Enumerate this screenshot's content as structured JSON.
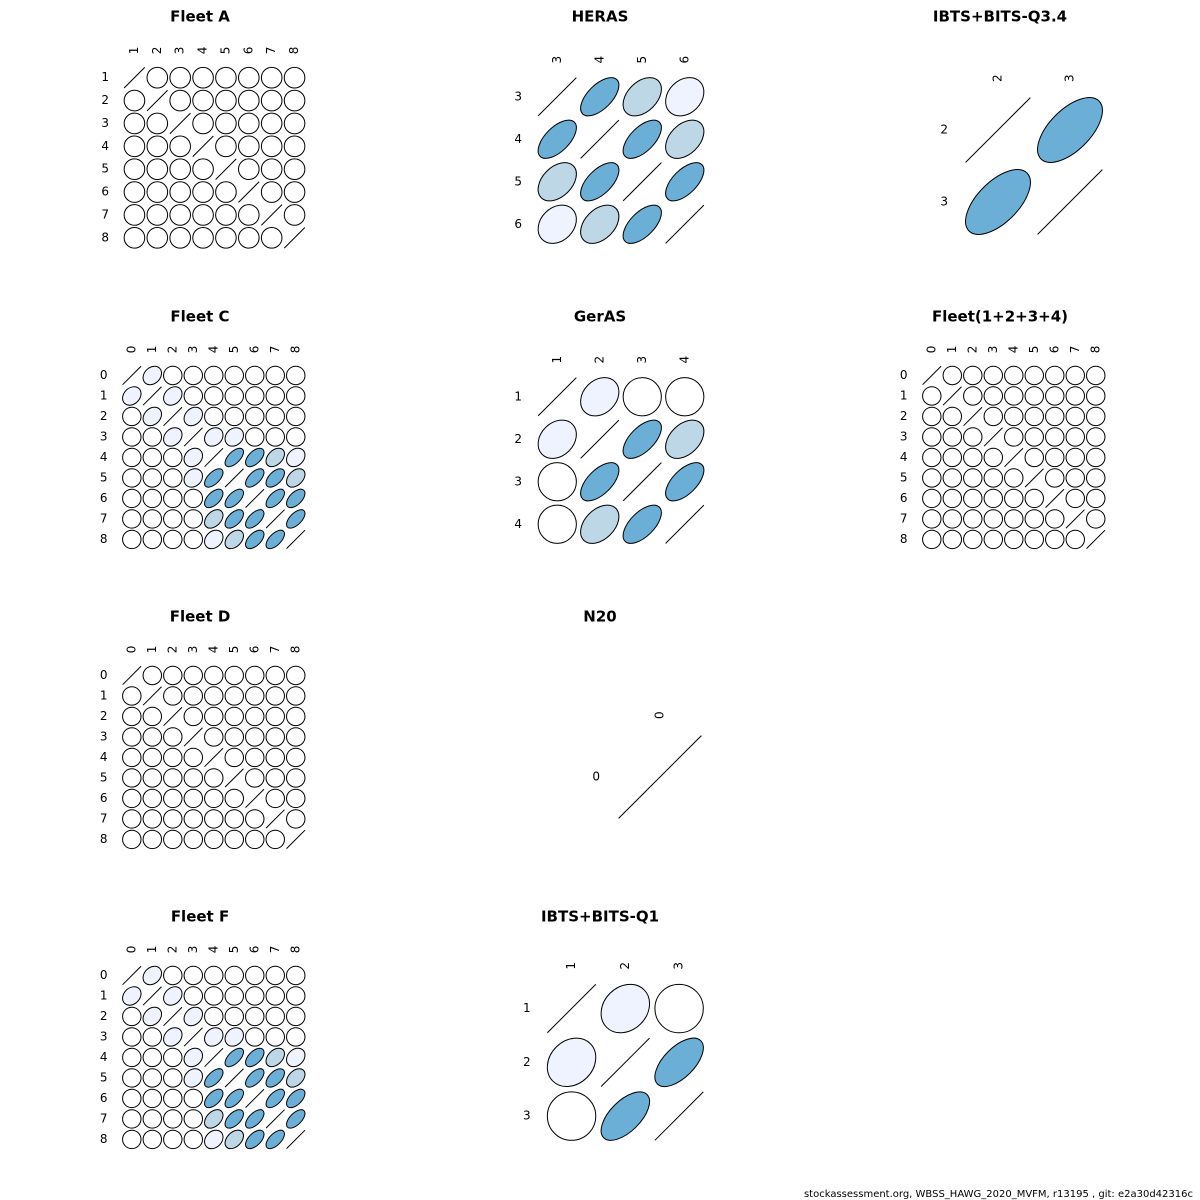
{
  "chart_data": [
    {
      "type": "correlation",
      "title": "Fleet A",
      "labels": [
        "1",
        "2",
        "3",
        "4",
        "5",
        "6",
        "7",
        "8"
      ],
      "matrix": [
        [
          1,
          0,
          0,
          0,
          0,
          0,
          0,
          0
        ],
        [
          0,
          1,
          0,
          0,
          0,
          0,
          0,
          0
        ],
        [
          0,
          0,
          1,
          0,
          0,
          0,
          0,
          0
        ],
        [
          0,
          0,
          0,
          1,
          0,
          0,
          0,
          0
        ],
        [
          0,
          0,
          0,
          0,
          1,
          0,
          0,
          0
        ],
        [
          0,
          0,
          0,
          0,
          0,
          1,
          0,
          0
        ],
        [
          0,
          0,
          0,
          0,
          0,
          0,
          1,
          0
        ],
        [
          0,
          0,
          0,
          0,
          0,
          0,
          0,
          1
        ]
      ]
    },
    {
      "type": "correlation",
      "title": "HERAS",
      "labels": [
        "3",
        "4",
        "5",
        "6"
      ],
      "matrix": [
        [
          1,
          0.6,
          0.4,
          0.25
        ],
        [
          0.6,
          1,
          0.6,
          0.4
        ],
        [
          0.4,
          0.6,
          1,
          0.6
        ],
        [
          0.25,
          0.4,
          0.6,
          1
        ]
      ]
    },
    {
      "type": "correlation",
      "title": "IBTS+BITS-Q3.4",
      "labels": [
        "2",
        "3"
      ],
      "matrix": [
        [
          1,
          0.6
        ],
        [
          0.6,
          1
        ]
      ]
    },
    {
      "type": "correlation",
      "title": "Fleet C",
      "labels": [
        "0",
        "1",
        "2",
        "3",
        "4",
        "5",
        "6",
        "7",
        "8"
      ],
      "matrix": [
        [
          1,
          0.25,
          0,
          0,
          0,
          0,
          0,
          0,
          0
        ],
        [
          0.25,
          1,
          0.25,
          0,
          0,
          0,
          0,
          0,
          0
        ],
        [
          0,
          0.25,
          1,
          0.25,
          0,
          0,
          0,
          0,
          0
        ],
        [
          0,
          0,
          0.25,
          1,
          0.2,
          0.2,
          0,
          0,
          0
        ],
        [
          0,
          0,
          0,
          0.2,
          1,
          0.6,
          0.55,
          0.4,
          0.25
        ],
        [
          0,
          0,
          0,
          0.2,
          0.6,
          1,
          0.6,
          0.55,
          0.4
        ],
        [
          0,
          0,
          0,
          0,
          0.55,
          0.6,
          1,
          0.6,
          0.55
        ],
        [
          0,
          0,
          0,
          0,
          0.4,
          0.55,
          0.6,
          1,
          0.6
        ],
        [
          0,
          0,
          0,
          0,
          0.25,
          0.4,
          0.55,
          0.6,
          1
        ]
      ]
    },
    {
      "type": "correlation",
      "title": "GerAS",
      "labels": [
        "1",
        "2",
        "3",
        "4"
      ],
      "matrix": [
        [
          1,
          0.25,
          0,
          0
        ],
        [
          0.25,
          1,
          0.6,
          0.4
        ],
        [
          0,
          0.6,
          1,
          0.6
        ],
        [
          0,
          0.4,
          0.6,
          1
        ]
      ]
    },
    {
      "type": "correlation",
      "title": "Fleet(1+2+3+4)",
      "labels": [
        "0",
        "1",
        "2",
        "3",
        "4",
        "5",
        "6",
        "7",
        "8"
      ],
      "matrix": [
        [
          1,
          0,
          0,
          0,
          0,
          0,
          0,
          0,
          0
        ],
        [
          0,
          1,
          0,
          0,
          0,
          0,
          0,
          0,
          0
        ],
        [
          0,
          0,
          1,
          0,
          0,
          0,
          0,
          0,
          0
        ],
        [
          0,
          0,
          0,
          1,
          0,
          0,
          0,
          0,
          0
        ],
        [
          0,
          0,
          0,
          0,
          1,
          0,
          0,
          0,
          0
        ],
        [
          0,
          0,
          0,
          0,
          0,
          1,
          0,
          0,
          0
        ],
        [
          0,
          0,
          0,
          0,
          0,
          0,
          1,
          0,
          0
        ],
        [
          0,
          0,
          0,
          0,
          0,
          0,
          0,
          1,
          0
        ],
        [
          0,
          0,
          0,
          0,
          0,
          0,
          0,
          0,
          1
        ]
      ]
    },
    {
      "type": "correlation",
      "title": "Fleet D",
      "labels": [
        "0",
        "1",
        "2",
        "3",
        "4",
        "5",
        "6",
        "7",
        "8"
      ],
      "matrix": [
        [
          1,
          0,
          0,
          0,
          0,
          0,
          0,
          0,
          0
        ],
        [
          0,
          1,
          0,
          0,
          0,
          0,
          0,
          0,
          0
        ],
        [
          0,
          0,
          1,
          0,
          0,
          0,
          0,
          0,
          0
        ],
        [
          0,
          0,
          0,
          1,
          0,
          0,
          0,
          0,
          0
        ],
        [
          0,
          0,
          0,
          0,
          1,
          0,
          0,
          0,
          0
        ],
        [
          0,
          0,
          0,
          0,
          0,
          1,
          0,
          0,
          0
        ],
        [
          0,
          0,
          0,
          0,
          0,
          0,
          1,
          0,
          0
        ],
        [
          0,
          0,
          0,
          0,
          0,
          0,
          0,
          1,
          0
        ],
        [
          0,
          0,
          0,
          0,
          0,
          0,
          0,
          0,
          1
        ]
      ]
    },
    {
      "type": "correlation",
      "title": "N20",
      "labels": [
        "0"
      ],
      "matrix": [
        [
          1
        ]
      ]
    },
    {
      "type": "correlation",
      "title": "Fleet F",
      "labels": [
        "0",
        "1",
        "2",
        "3",
        "4",
        "5",
        "6",
        "7",
        "8"
      ],
      "matrix": [
        [
          1,
          0.25,
          0,
          0,
          0,
          0,
          0,
          0,
          0
        ],
        [
          0.25,
          1,
          0.25,
          0,
          0,
          0,
          0,
          0,
          0
        ],
        [
          0,
          0.25,
          1,
          0.25,
          0,
          0,
          0,
          0,
          0
        ],
        [
          0,
          0,
          0.25,
          1,
          0.2,
          0.2,
          0,
          0,
          0
        ],
        [
          0,
          0,
          0,
          0.2,
          1,
          0.6,
          0.55,
          0.4,
          0.25
        ],
        [
          0,
          0,
          0,
          0.2,
          0.6,
          1,
          0.6,
          0.55,
          0.4
        ],
        [
          0,
          0,
          0,
          0,
          0.55,
          0.6,
          1,
          0.6,
          0.55
        ],
        [
          0,
          0,
          0,
          0,
          0.4,
          0.55,
          0.6,
          1,
          0.6
        ],
        [
          0,
          0,
          0,
          0,
          0.25,
          0.4,
          0.55,
          0.6,
          1
        ]
      ]
    },
    {
      "type": "correlation",
      "title": "IBTS+BITS-Q1",
      "labels": [
        "1",
        "2",
        "3"
      ],
      "matrix": [
        [
          1,
          0.2,
          0
        ],
        [
          0.2,
          1,
          0.6
        ],
        [
          0,
          0.6,
          1
        ]
      ]
    }
  ],
  "palette": [
    "#ffffff",
    "#eff3ff",
    "#bdd7e7",
    "#6baed6"
  ],
  "footer": "stockassessment.org, WBSS_HAWG_2020_MVFM, r13195 , git: e2a30d42316c"
}
